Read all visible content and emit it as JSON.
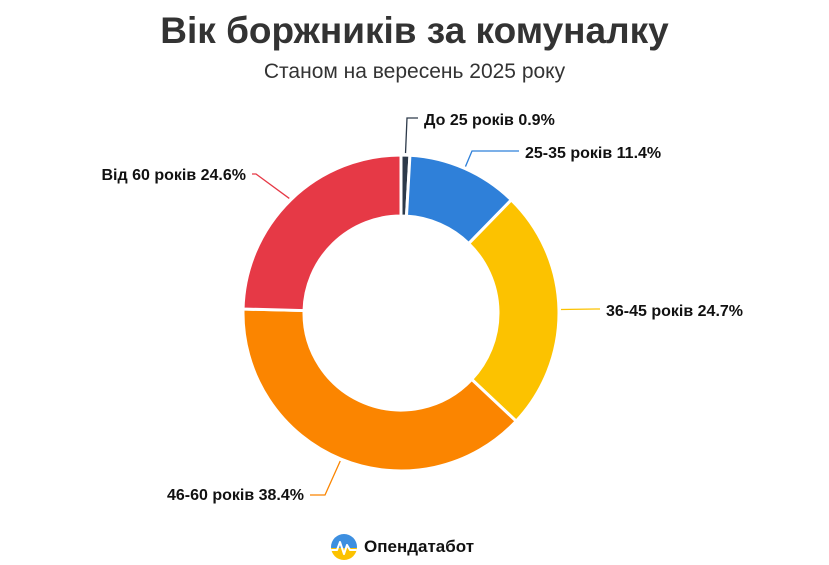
{
  "chart_data": {
    "type": "pie",
    "variant": "donut",
    "title": "Вік боржників за комуналку",
    "subtitle": "Станом на вересень 2025 року",
    "categories": [
      "До 25 років",
      "25-35 років",
      "36-45 років",
      "46-60 років",
      "Від 60 років"
    ],
    "values": [
      0.9,
      11.4,
      24.7,
      38.4,
      24.6
    ],
    "value_suffix": "%",
    "colors": [
      "#2d3a4a",
      "#2f80d9",
      "#fcc200",
      "#fb8500",
      "#e63946"
    ],
    "legend": "none"
  },
  "brand": {
    "name": "Опендатабот"
  }
}
